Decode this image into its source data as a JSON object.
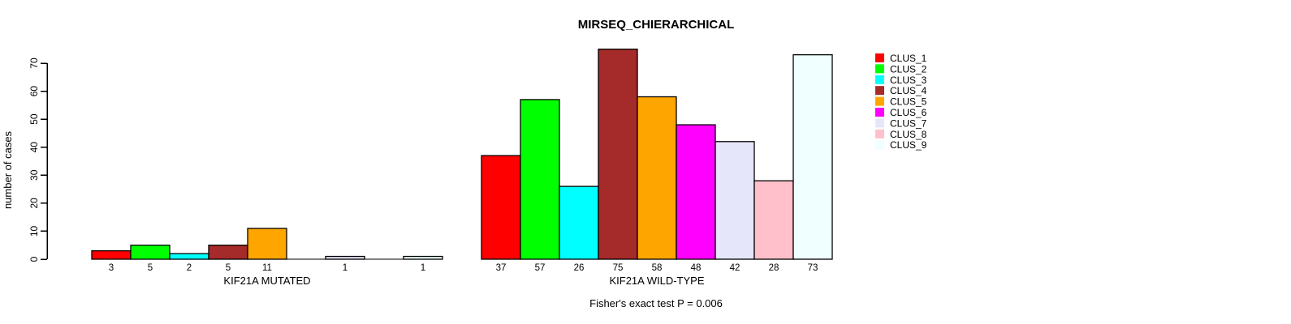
{
  "chart_data": {
    "type": "bar",
    "title": "MIRSEQ_CHIERARCHICAL",
    "ylabel": "number of cases",
    "ylim": [
      0,
      70
    ],
    "yticks": [
      0,
      10,
      20,
      30,
      40,
      50,
      60,
      70
    ],
    "grid": false,
    "legend_position": "top-right",
    "series_names": [
      "CLUS_1",
      "CLUS_2",
      "CLUS_3",
      "CLUS_4",
      "CLUS_5",
      "CLUS_6",
      "CLUS_7",
      "CLUS_8",
      "CLUS_9"
    ],
    "colors": [
      "#FF0000",
      "#00FF00",
      "#00FFFF",
      "#A52A2A",
      "#FFA500",
      "#FF00FF",
      "#E6E6FA",
      "#FFC0CB",
      "#F0FFFF"
    ],
    "bar_border_color": "#000000",
    "groups": [
      {
        "label": "KIF21A MUTATED",
        "values": [
          3,
          5,
          2,
          5,
          11,
          0,
          1,
          0,
          1
        ]
      },
      {
        "label": "KIF21A WILD-TYPE",
        "values": [
          37,
          57,
          26,
          75,
          58,
          48,
          42,
          28,
          73
        ]
      }
    ],
    "value_labels": "nonzero bars labeled with their value below the baseline",
    "annotation": "Fisher's exact test P = 0.006"
  }
}
